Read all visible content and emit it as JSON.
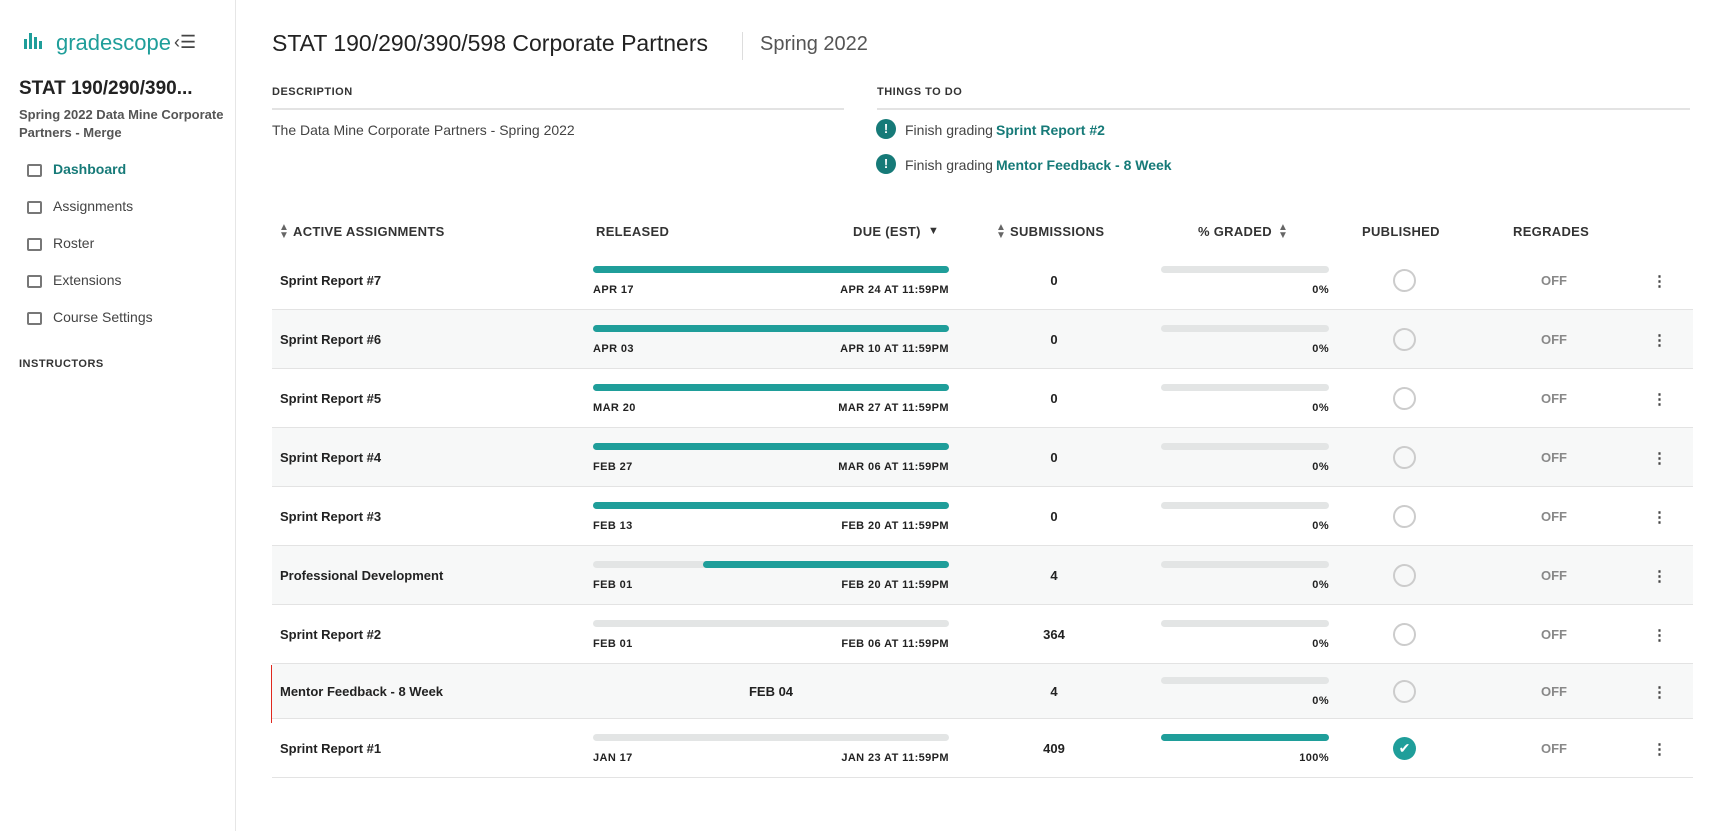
{
  "sidebar": {
    "brand": "gradescope",
    "course_title": "STAT 190/290/390...",
    "course_subtitle": "Spring 2022 Data Mine Corporate Partners - Merge",
    "nav": [
      "Dashboard",
      "Assignments",
      "Roster",
      "Extensions",
      "Course Settings"
    ],
    "section": "INSTRUCTORS"
  },
  "header": {
    "title": "STAT 190/290/390/598 Corporate Partners",
    "term": "Spring 2022"
  },
  "description": {
    "heading": "DESCRIPTION",
    "text": "The Data Mine Corporate Partners - Spring 2022"
  },
  "todo": {
    "heading": "THINGS TO DO",
    "items": [
      {
        "prefix": "Finish grading",
        "link": "Sprint Report #2"
      },
      {
        "prefix": "Finish grading",
        "link": "Mentor Feedback - 8 Week"
      }
    ]
  },
  "table": {
    "columns": [
      "ACTIVE ASSIGNMENTS",
      "RELEASED",
      "DUE (EST)",
      "SUBMISSIONS",
      "% GRADED",
      "PUBLISHED",
      "REGRADES"
    ],
    "rows": [
      {
        "name": "Sprint Report #7",
        "released": "APR 17",
        "due": "APR 24 AT 11:59PM",
        "submissions": 0,
        "graded": {
          "value": 0,
          "label": "0%"
        },
        "published": false,
        "regrades": "OFF"
      },
      {
        "name": "Sprint Report #6",
        "released": "APR 03",
        "due": "APR 10 AT 11:59PM",
        "submissions": 0,
        "graded": {
          "value": 0,
          "label": "0%"
        },
        "published": false,
        "regrades": "OFF"
      },
      {
        "name": "Sprint Report #5",
        "released": "MAR 20",
        "due": "MAR 27 AT 11:59PM",
        "submissions": 0,
        "graded": {
          "value": 0,
          "label": "0%"
        },
        "published": false,
        "regrades": "OFF"
      },
      {
        "name": "Sprint Report #4",
        "released": "FEB 27",
        "due": "MAR 06 AT 11:59PM",
        "submissions": 0,
        "graded": {
          "value": 0,
          "label": "0%"
        },
        "published": false,
        "regrades": "OFF"
      },
      {
        "name": "Sprint Report #3",
        "released": "FEB 13",
        "due": "FEB 20 AT 11:59PM",
        "submissions": 0,
        "graded": {
          "value": 0,
          "label": "0%"
        },
        "published": false,
        "regrades": "OFF"
      },
      {
        "name": "Professional Development",
        "released": "FEB 01",
        "due": "FEB 20 AT 11:59PM",
        "submissions": 4,
        "graded": {
          "value": 0,
          "label": "0%"
        },
        "published": false,
        "regrades": "OFF"
      },
      {
        "name": "Sprint Report #2",
        "released": "FEB 01",
        "due": "FEB 06 AT 11:59PM",
        "submissions": 364,
        "graded": {
          "value": 0,
          "label": "0%"
        },
        "published": false,
        "regrades": "OFF"
      },
      {
        "name": "Mentor Feedback - 8 Week",
        "released": "FEB 04",
        "submissions": 4,
        "graded": {
          "value": 0,
          "label": "0%"
        },
        "published": false,
        "regrades": "OFF"
      },
      {
        "name": "Sprint Report #1",
        "released": "JAN 17",
        "due": "JAN 23 AT 11:59PM",
        "submissions": 409,
        "graded": {
          "value": 100,
          "label": "100%"
        },
        "published": true,
        "regrades": "OFF"
      }
    ]
  }
}
